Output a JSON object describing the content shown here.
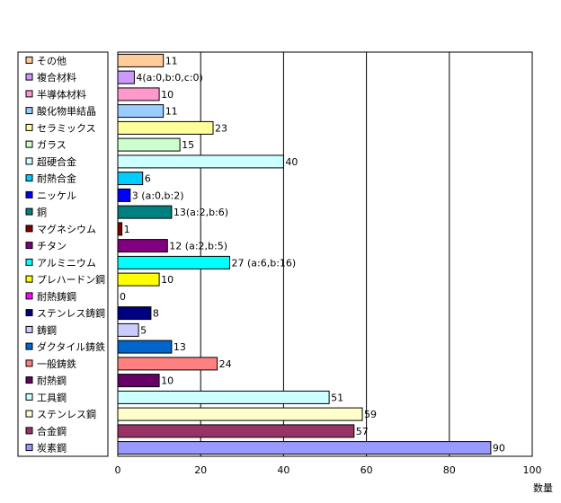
{
  "chart_data": {
    "type": "bar",
    "orientation": "horizontal",
    "categories": [
      "その他",
      "複合材料",
      "半導体材料",
      "酸化物単結晶",
      "セラミックス",
      "ガラス",
      "超硬合金",
      "耐熱合金",
      "ニッケル",
      "銅",
      "マグネシウム",
      "チタン",
      "アルミニウム",
      "プレハードン鋼",
      "耐熱鋳鋼",
      "ステンレス鋳鋼",
      "鋳鋼",
      "ダクタイル鋳鉄",
      "一般鋳鉄",
      "耐熱鋼",
      "工具鋼",
      "ステンレス鋼",
      "合金鋼",
      "炭素鋼"
    ],
    "values": [
      11,
      4,
      10,
      11,
      23,
      15,
      40,
      6,
      3,
      13,
      1,
      12,
      27,
      10,
      0,
      8,
      5,
      13,
      24,
      10,
      51,
      59,
      57,
      90
    ],
    "data_labels": [
      "11",
      "4(a:0,b:0,c:0)",
      "10",
      "11",
      "23",
      "15",
      "40",
      "6",
      "3  (a:0,b:2)",
      "13(a:2,b:6)",
      "1",
      "12  (a:2,b:5)",
      "27   (a:6,b:16)",
      "10",
      "0",
      "8",
      "5",
      "13",
      "24",
      "10",
      "51",
      "59",
      "57",
      "90"
    ],
    "colors": [
      "#FFCC99",
      "#CC99FF",
      "#FF99CC",
      "#99CCFF",
      "#FFFF99",
      "#CCFFCC",
      "#CCFFFF",
      "#00CCFF",
      "#0000FF",
      "#008080",
      "#800000",
      "#800080",
      "#00FFFF",
      "#FFFF00",
      "#FF00FF",
      "#000080",
      "#CCCCFF",
      "#0066CC",
      "#FF8080",
      "#660066",
      "#CCFFFF",
      "#FFFFCC",
      "#993366",
      "#9999FF"
    ],
    "xlim": [
      0,
      100
    ],
    "xticks": [
      0,
      20,
      40,
      60,
      80,
      100
    ],
    "xlabel": "数量",
    "grid": "vertical",
    "legend_position": "left"
  }
}
